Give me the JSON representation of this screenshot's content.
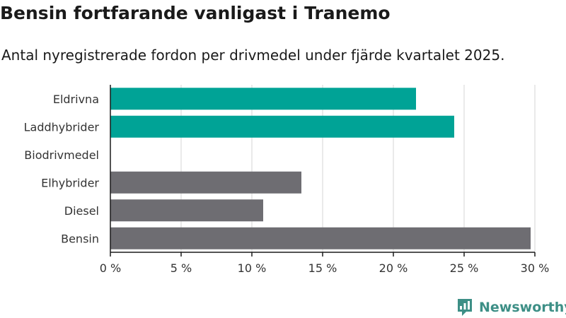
{
  "title": "Bensin fortfarande vanligast i Tranemo",
  "subtitle": "Antal nyregistrerade fordon per drivmedel under fjärde kvartalet 2025.",
  "logo": {
    "name": "newsworthy-icon",
    "text": "Newsworthy",
    "color": "#3d8f86"
  },
  "chart_data": {
    "type": "bar",
    "orientation": "horizontal",
    "categories": [
      "Eldrivna",
      "Laddhybrider",
      "Biodrivmedel",
      "Elhybrider",
      "Diesel",
      "Bensin"
    ],
    "values": [
      21.6,
      24.3,
      0,
      13.5,
      10.8,
      29.7
    ],
    "colors": [
      "#00a396",
      "#00a396",
      "#00a396",
      "#6e6d72",
      "#6e6d72",
      "#6e6d72"
    ],
    "xlim": [
      0,
      30
    ],
    "xticks": [
      0,
      5,
      10,
      15,
      20,
      25,
      30
    ],
    "tick_suffix": " %",
    "grid": true
  }
}
